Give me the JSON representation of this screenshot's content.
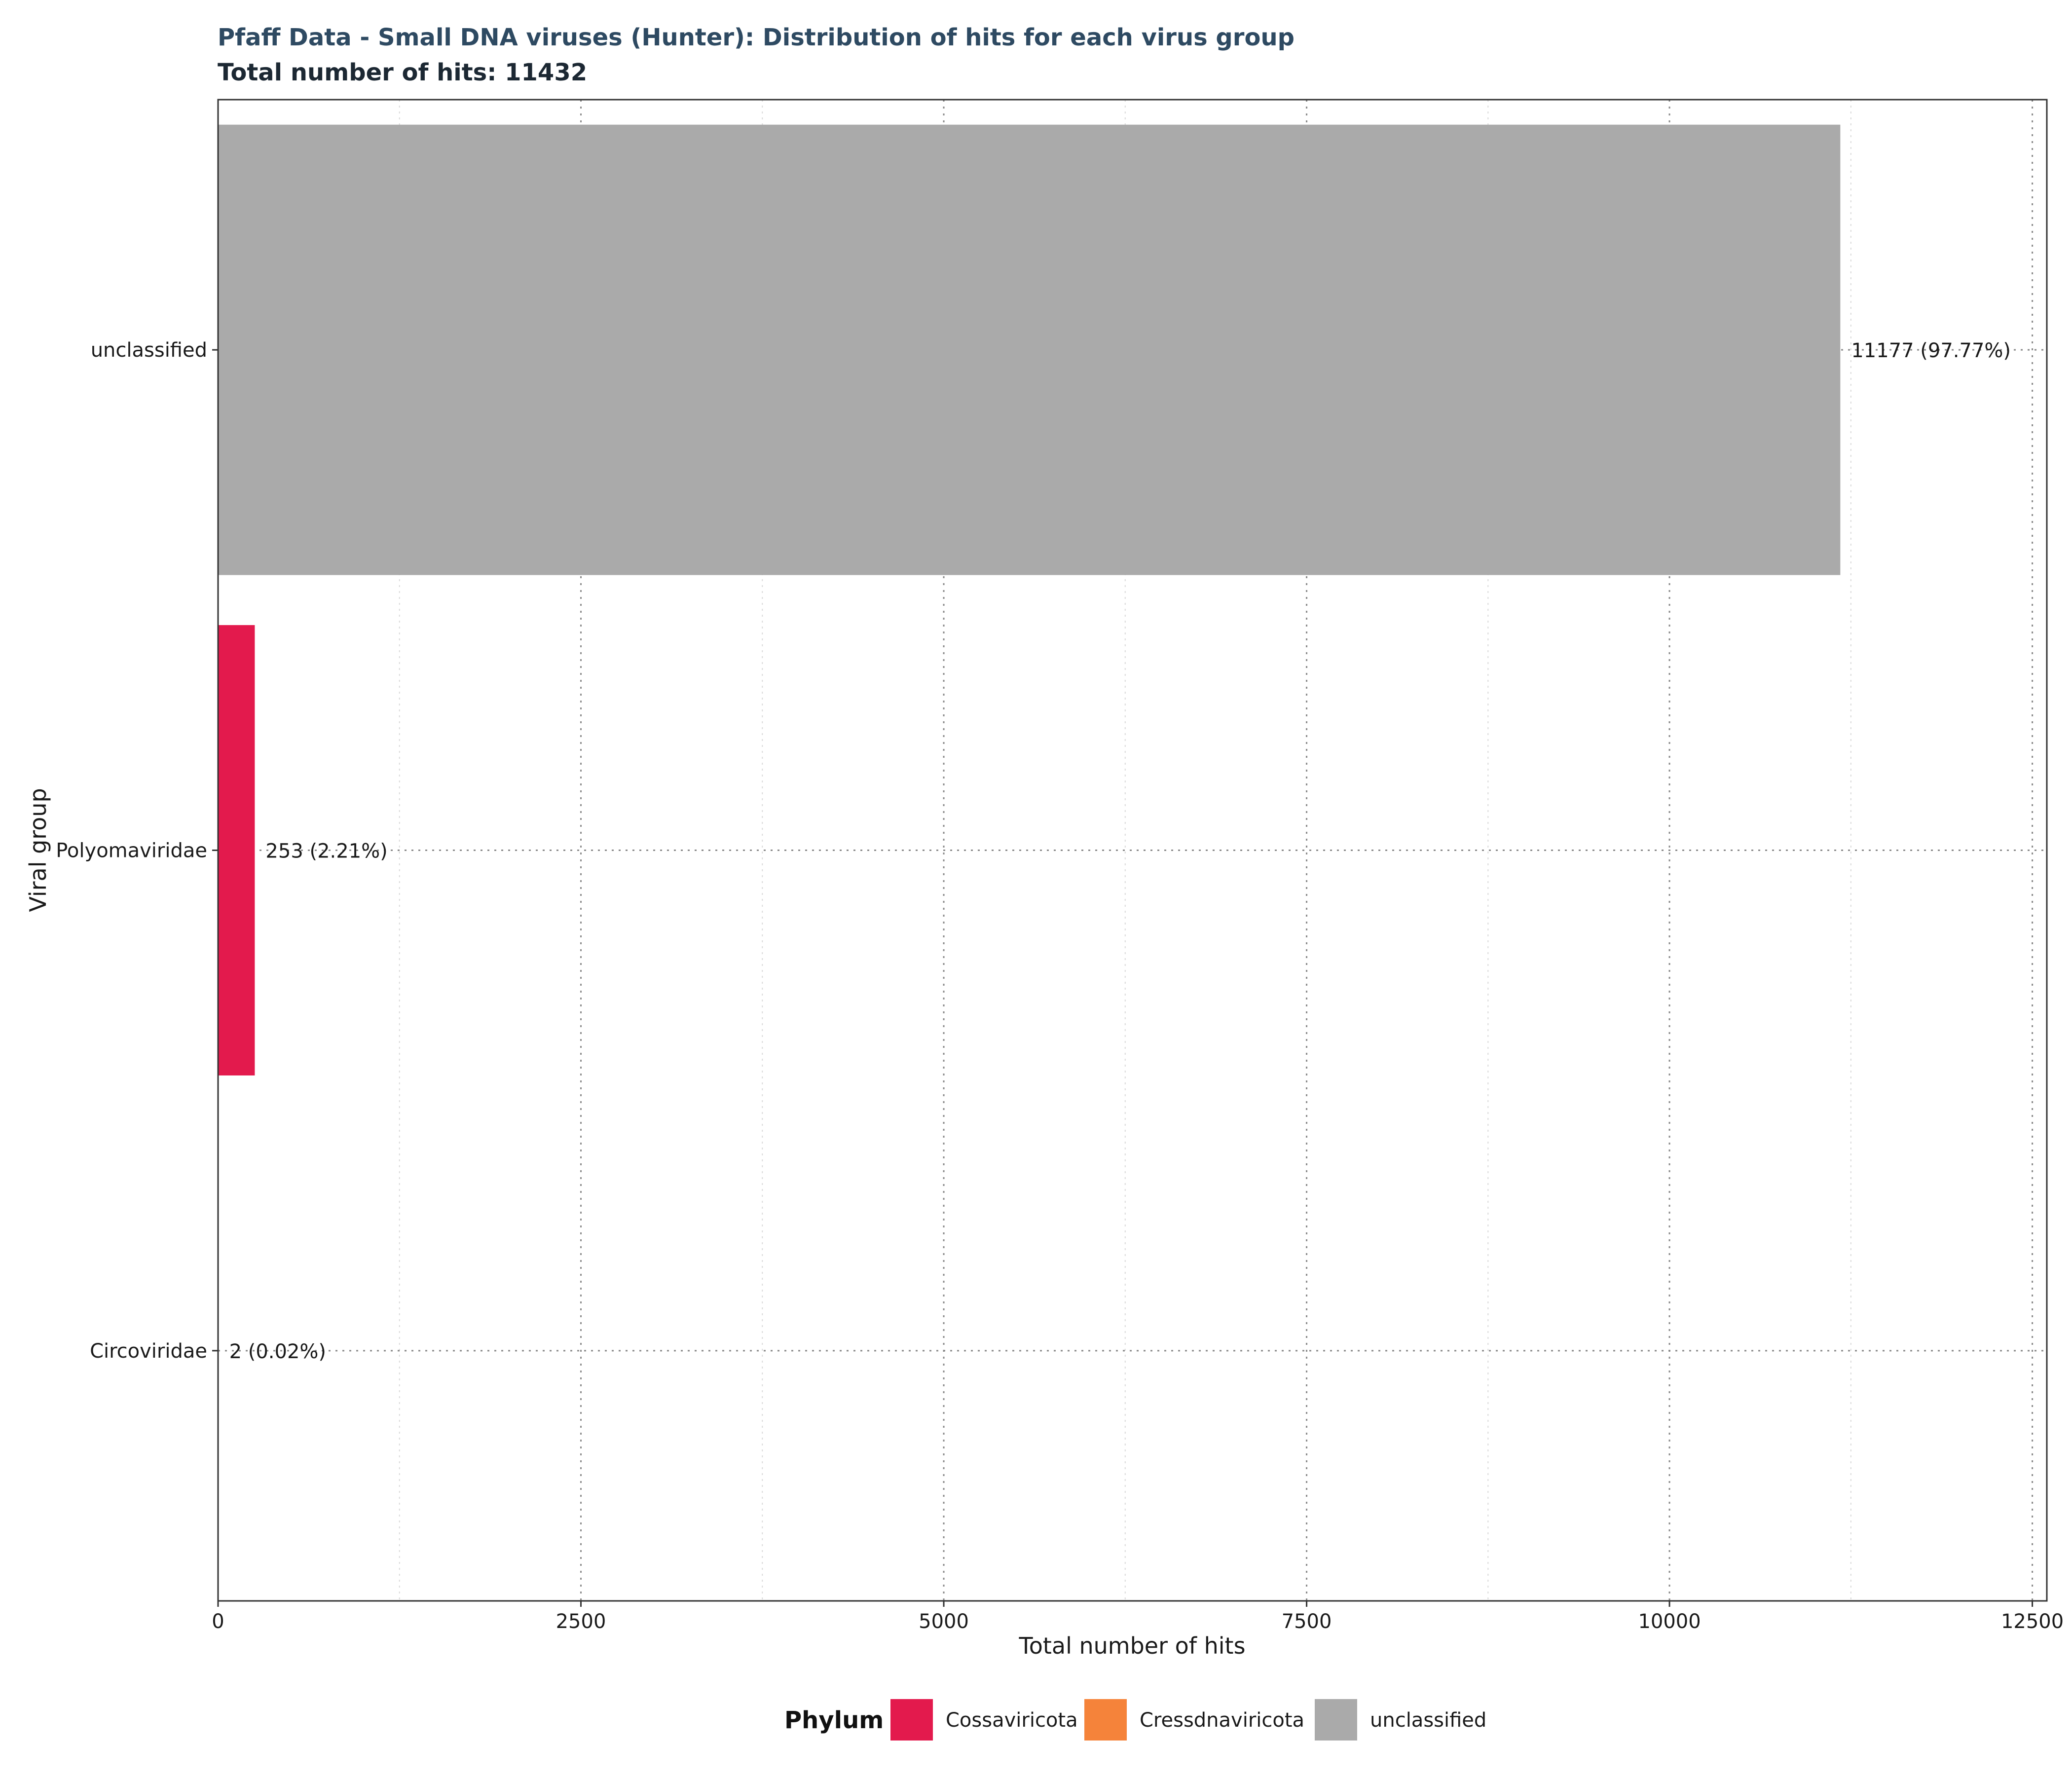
{
  "chart_data": {
    "type": "bar",
    "orientation": "horizontal",
    "title": "Pfaff Data - Small DNA viruses (Hunter): Distribution of hits for each virus group",
    "subtitle": "Total number of hits: 11432",
    "xlabel": "Total number of hits",
    "ylabel": "Viral group",
    "categories": [
      "Circoviridae",
      "Polyomaviridae",
      "unclassified"
    ],
    "values": [
      2,
      253,
      11177
    ],
    "labels": [
      "2 (0.02%)",
      "253 (2.21%)",
      "11177 (97.77%)"
    ],
    "bar_phylum": [
      "Cressdnaviricota",
      "Cossaviricota",
      "unclassified"
    ],
    "xlim": [
      0,
      12600
    ],
    "xticks": [
      0,
      2500,
      5000,
      7500,
      10000,
      12500
    ],
    "xtick_labels": [
      "0",
      "2500",
      "5000",
      "7500",
      "10000",
      "12500"
    ],
    "grid": true,
    "legend": {
      "title": "Phylum",
      "position": "bottom",
      "entries": [
        {
          "name": "Cossaviricota",
          "color": "#e31a4d"
        },
        {
          "name": "Cressdnaviricota",
          "color": "#f5833a"
        },
        {
          "name": "unclassified",
          "color": "#aaaaaa"
        }
      ]
    },
    "colors": {
      "title": "#2e4a62",
      "subtitle": "#1c2833",
      "Cossaviricota": "#e31a4d",
      "Cressdnaviricota": "#f5833a",
      "unclassified": "#aaaaaa"
    }
  }
}
